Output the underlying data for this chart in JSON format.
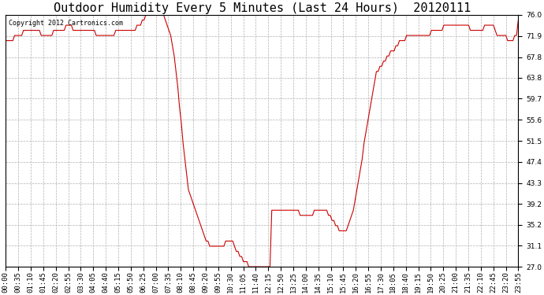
{
  "title": "Outdoor Humidity Every 5 Minutes (Last 24 Hours)  20120111",
  "copyright": "Copyright 2012 Cartronics.com",
  "line_color": "#cc0000",
  "bg_color": "#ffffff",
  "plot_bg_color": "#ffffff",
  "grid_color": "#b0b0b0",
  "yticks": [
    27.0,
    31.1,
    35.2,
    39.2,
    43.3,
    47.4,
    51.5,
    55.6,
    59.7,
    63.8,
    67.8,
    71.9,
    76.0
  ],
  "ylim": [
    27.0,
    76.0
  ],
  "title_fontsize": 11,
  "tick_fontsize": 6.5,
  "copyright_fontsize": 6,
  "humidity_data": [
    71,
    71,
    71,
    71,
    71,
    72,
    72,
    72,
    72,
    72,
    73,
    73,
    73,
    73,
    73,
    73,
    73,
    73,
    73,
    73,
    72,
    72,
    72,
    72,
    72,
    72,
    72,
    73,
    73,
    73,
    73,
    73,
    73,
    73,
    74,
    74,
    74,
    74,
    73,
    73,
    73,
    73,
    73,
    73,
    73,
    73,
    73,
    73,
    73,
    73,
    73,
    72,
    72,
    72,
    72,
    72,
    72,
    72,
    72,
    72,
    72,
    72,
    73,
    73,
    73,
    73,
    73,
    73,
    73,
    73,
    73,
    73,
    73,
    73,
    74,
    74,
    74,
    75,
    75,
    76,
    76,
    76,
    76,
    76,
    76,
    76,
    76,
    76,
    76,
    76,
    75,
    74,
    73,
    72,
    70,
    68,
    65,
    62,
    58,
    55,
    51,
    48,
    45,
    42,
    41,
    40,
    39,
    38,
    37,
    36,
    35,
    34,
    33,
    32,
    32,
    31,
    31,
    31,
    31,
    31,
    31,
    31,
    31,
    31,
    32,
    32,
    32,
    32,
    32,
    31,
    30,
    30,
    29,
    29,
    28,
    28,
    28,
    27,
    27,
    27,
    27,
    27,
    27,
    27,
    27,
    27,
    27,
    27,
    27,
    27,
    38,
    38,
    38,
    38,
    38,
    38,
    38,
    38,
    38,
    38,
    38,
    38,
    38,
    38,
    38,
    38,
    37,
    37,
    37,
    37,
    37,
    37,
    37,
    37,
    38,
    38,
    38,
    38,
    38,
    38,
    38,
    38,
    37,
    37,
    36,
    36,
    35,
    35,
    34,
    34,
    34,
    34,
    34,
    35,
    36,
    37,
    38,
    40,
    42,
    44,
    46,
    48,
    51,
    53,
    55,
    57,
    59,
    61,
    63,
    65,
    65,
    66,
    66,
    67,
    67,
    68,
    68,
    69,
    69,
    69,
    70,
    70,
    71,
    71,
    71,
    71,
    72,
    72,
    72,
    72,
    72,
    72,
    72,
    72,
    72,
    72,
    72,
    72,
    72,
    72,
    73,
    73,
    73,
    73,
    73,
    73,
    73,
    74,
    74,
    74,
    74,
    74,
    74,
    74,
    74,
    74,
    74,
    74,
    74,
    74,
    74,
    74,
    73,
    73,
    73,
    73,
    73,
    73,
    73,
    73,
    74,
    74,
    74,
    74,
    74,
    74,
    73,
    72,
    72,
    72,
    72,
    72,
    72,
    71,
    71,
    71,
    71,
    72,
    72,
    75
  ],
  "xtick_labels": [
    "00:00",
    "00:35",
    "01:10",
    "01:45",
    "02:20",
    "02:55",
    "03:30",
    "04:05",
    "04:40",
    "05:15",
    "05:50",
    "06:25",
    "07:00",
    "07:35",
    "08:10",
    "08:45",
    "09:20",
    "09:55",
    "10:30",
    "11:05",
    "11:40",
    "12:15",
    "12:50",
    "13:25",
    "14:00",
    "14:35",
    "15:10",
    "15:45",
    "16:20",
    "16:55",
    "17:30",
    "18:05",
    "18:40",
    "19:15",
    "19:50",
    "20:25",
    "21:00",
    "21:35",
    "22:10",
    "22:45",
    "23:20",
    "23:55"
  ]
}
